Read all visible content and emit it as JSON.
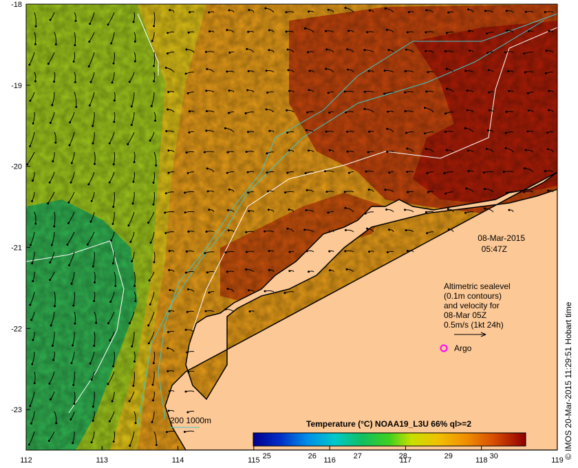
{
  "map": {
    "lon_ticks": [
      "112",
      "113",
      "114",
      "115",
      "116",
      "117",
      "118",
      "119"
    ],
    "lat_ticks": [
      "-18",
      "-19",
      "-20",
      "-21",
      "-22",
      "-23"
    ],
    "lon_range": [
      112,
      119
    ],
    "lat_range": [
      -23.5,
      -18
    ]
  },
  "timestamp": {
    "date": "08-Mar-2015",
    "time": "05:47Z"
  },
  "legend": {
    "line1": "Altimetric sealevel",
    "line2": "(0.1m contours)",
    "line3": "and velocity for",
    "line4": "08-Mar 05Z",
    "line5": "0.5m/s (1kt 24h)",
    "argo_label": "Argo"
  },
  "depth_key": {
    "label": "200  1000m",
    "color": "#40c8c8"
  },
  "colorbar": {
    "title": "Temperature (°C) NOAA19_L3U 66% ql>=2",
    "ticks": [
      "25",
      "26",
      "27",
      "28",
      "29",
      "30"
    ],
    "range": [
      24.7,
      30.7
    ],
    "colors": [
      "#00008c",
      "#0030c8",
      "#0090e8",
      "#00c8c8",
      "#10c060",
      "#40d020",
      "#c8e000",
      "#f0c000",
      "#f09000",
      "#d85000",
      "#b02000",
      "#8c0000"
    ]
  },
  "credit": "© IMOS 20-Mar-2015 11:29:51 Hobart time",
  "colors": {
    "land": "#fcc896",
    "warm_sea": "#e08a10",
    "hot_sea": "#b52a0a",
    "cool_sea": "#30b040",
    "argo": "#ff00ff"
  }
}
